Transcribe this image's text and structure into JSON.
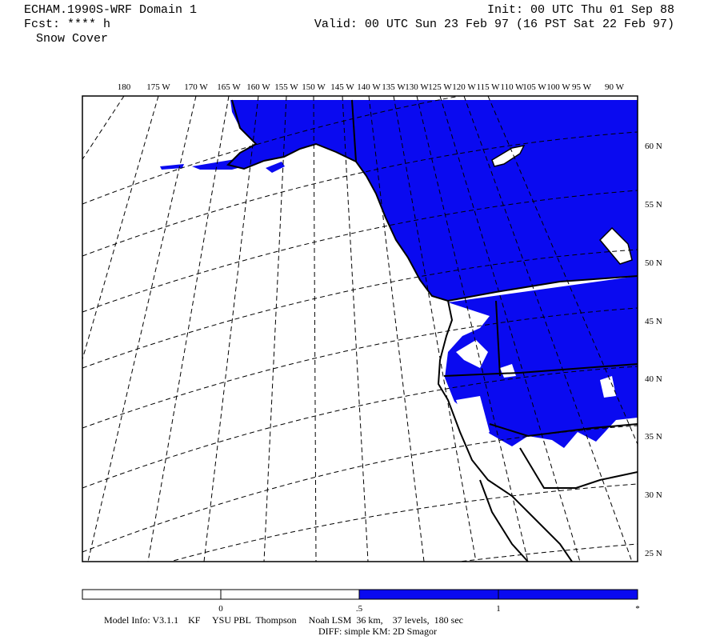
{
  "header": {
    "title": "ECHAM.1990S-WRF Domain 1",
    "init": "Init: 00 UTC Thu 01 Sep 88",
    "fcst": "Fcst: **** h",
    "valid": "Valid: 00 UTC Sun 23 Feb 97 (16 PST Sat 22 Feb 97)",
    "field": "Snow Cover"
  },
  "map": {
    "lon_labels": [
      "180",
      "175 W",
      "170 W",
      "165 W",
      "160 W",
      "155 W",
      "150 W",
      "145 W",
      "140 W",
      "135 W",
      "130 W",
      "125 W",
      "120 W",
      "115 W",
      "110 W",
      "105 W",
      "100 W",
      "95 W",
      "90 W"
    ],
    "lat_labels": [
      "60 N",
      "55 N",
      "50 N",
      "45 N",
      "40 N",
      "35 N",
      "30 N",
      "25 N"
    ]
  },
  "legend": {
    "ticks": [
      "0",
      ".5",
      "1",
      "*"
    ]
  },
  "footer": {
    "lines": [
      "Model Info: V3.1.1    KF     YSU PBL  Thompson     Noah LSM  36 km,    37 levels,  180 sec",
      "DIFF: simple KM: 2D Smagor"
    ]
  }
}
